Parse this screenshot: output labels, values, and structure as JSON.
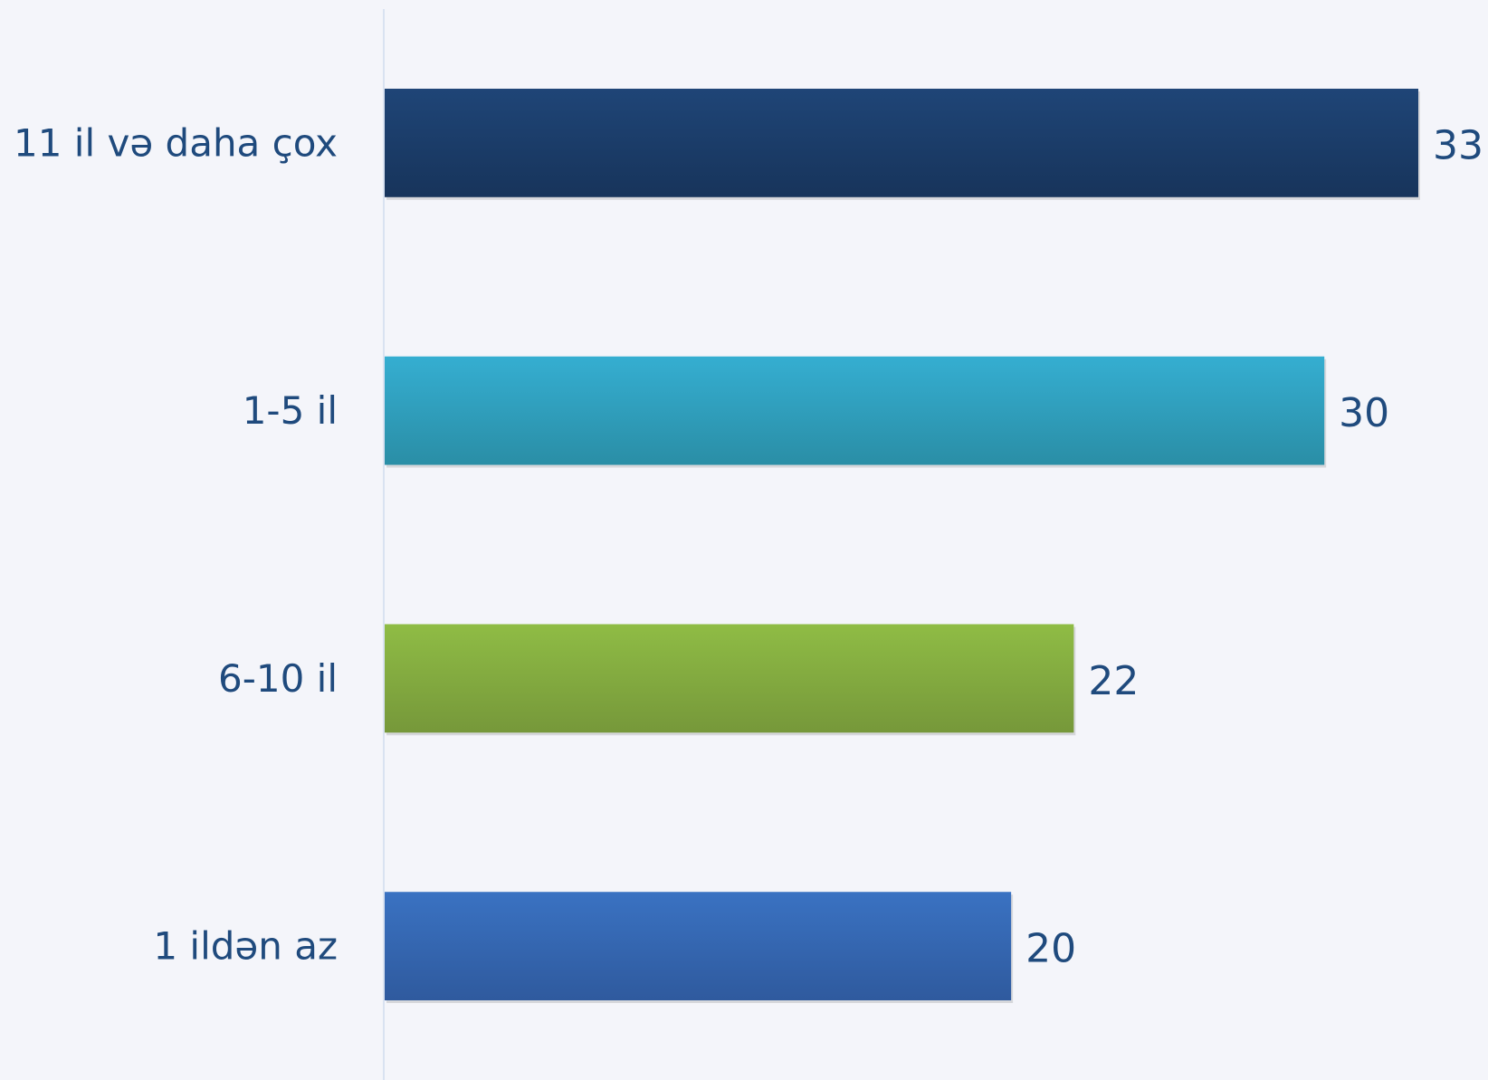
{
  "chart_data": {
    "type": "bar",
    "orientation": "horizontal",
    "categories": [
      "11 il və daha çox",
      "1-5 il",
      "6-10 il",
      "1 ildən az"
    ],
    "values": [
      33,
      30,
      22,
      20
    ],
    "data_labels": [
      "33",
      "30",
      "22",
      "20"
    ],
    "colors": [
      "#1f4577",
      "#35aed1",
      "#8fbc45",
      "#3a72c2"
    ],
    "colors_dark": [
      "#17345b",
      "#2a8ea6",
      "#76983a",
      "#2f5a9e"
    ],
    "title": "",
    "xlabel": "",
    "ylabel": "",
    "xlim": [
      0,
      33
    ],
    "grid": false,
    "legend": "none"
  }
}
